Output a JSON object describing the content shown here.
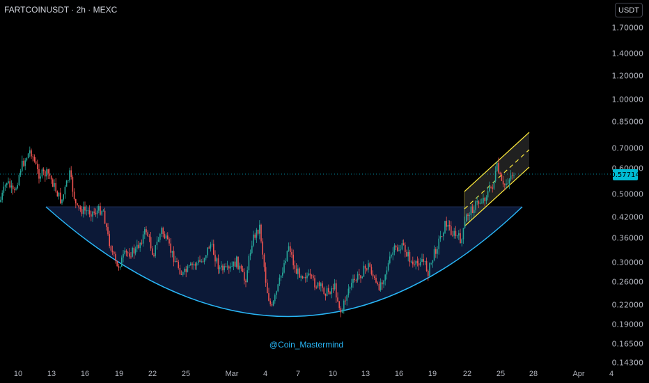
{
  "header": {
    "symbol_line": "FARTCOINUSDT · 2h · MEXC"
  },
  "currency_button": "USDT",
  "price_axis": [
    "1.70000",
    "1.40000",
    "1.20000",
    "1.00000",
    "0.85000",
    "0.70000",
    "0.60000",
    "0.50000",
    "0.42000",
    "0.36000",
    "0.30000",
    "0.26000",
    "0.22000",
    "0.19000",
    "0.16500",
    "0.14300"
  ],
  "current_price": "0.57714",
  "time_axis": [
    "10",
    "13",
    "16",
    "19",
    "22",
    "25",
    "Mar",
    "4",
    "7",
    "10",
    "13",
    "16",
    "19",
    "22",
    "25",
    "28",
    "Apr",
    "4"
  ],
  "watermark": "@Coin_Mastermind",
  "colors": {
    "background": "#000000",
    "candle_up": "#26a69a",
    "candle_down": "#ef5350",
    "cup_curve": "#29b6f6",
    "cup_fill": "#0d1a3a",
    "channel_line": "#ffeb3b",
    "current_price": "#00bcd4"
  },
  "icons": {
    "dot_separator": "middle-dot"
  }
}
